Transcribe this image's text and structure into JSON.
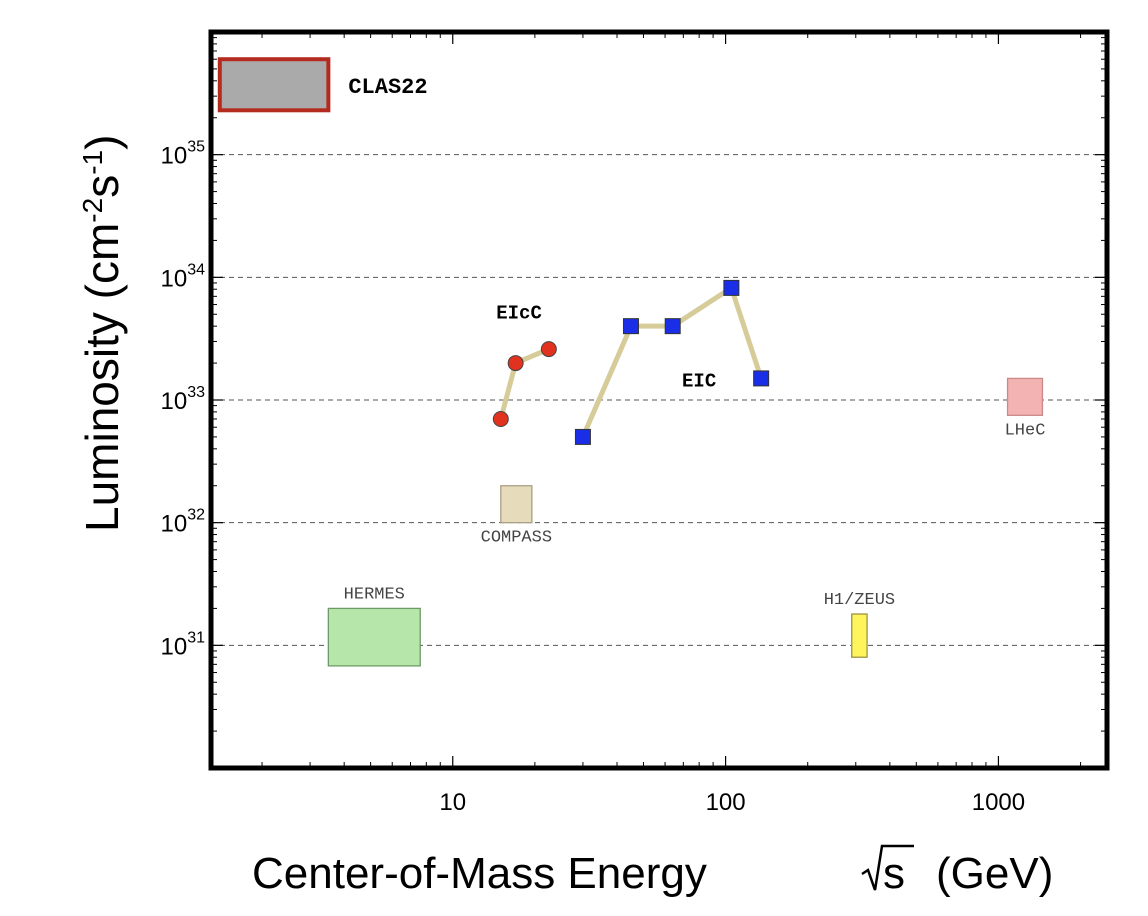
{
  "chart_data": {
    "type": "scatter",
    "xlabel": "Center-of-Mass Energy",
    "xlabel_symbol": "s",
    "xlabel_unit": "(GeV)",
    "ylabel_prefix": "Luminosity (cm",
    "ylabel_exp1": "-2",
    "ylabel_mid": "s",
    "ylabel_exp2": "-1",
    "ylabel_suffix": ")",
    "x_scale": "log",
    "y_scale": "log",
    "xlim": [
      1.3,
      2500
    ],
    "ylim": [
      1e+30,
      1e+36
    ],
    "x_ticks": [
      {
        "value": 10,
        "label": "10"
      },
      {
        "value": 100,
        "label": "100"
      },
      {
        "value": 1000,
        "label": "1000"
      }
    ],
    "y_ticks": [
      {
        "value": 1e+31,
        "base": "10",
        "exp": "31"
      },
      {
        "value": 1e+32,
        "base": "10",
        "exp": "32"
      },
      {
        "value": 1e+33,
        "base": "10",
        "exp": "33"
      },
      {
        "value": 1e+34,
        "base": "10",
        "exp": "34"
      },
      {
        "value": 1e+35,
        "base": "10",
        "exp": "35"
      }
    ],
    "grid": "horizontal dashed",
    "series": [
      {
        "name": "EIcC",
        "marker": "circle",
        "color": "#e0321e",
        "line_color": "#d6cc99",
        "x": [
          15,
          17,
          22.5
        ],
        "y": [
          7e+32,
          2e+33,
          2.6e+33
        ]
      },
      {
        "name": "EIC",
        "marker": "square",
        "color": "#1a2ee8",
        "line_color": "#d6cc99",
        "x": [
          30,
          45,
          64,
          105,
          135
        ],
        "y": [
          5e+32,
          4e+33,
          4e+33,
          8.2e+33,
          1.5e+33
        ]
      }
    ],
    "regions": [
      {
        "name": "CLAS22",
        "x": [
          1.4,
          3.5
        ],
        "y": [
          2.3e+35,
          6e+35
        ],
        "fill": "#aaaaaa",
        "stroke": "#b52a1e"
      },
      {
        "name": "LHeC",
        "x": [
          1080,
          1450
        ],
        "y": [
          7.5e+32,
          1.5e+33
        ],
        "fill": "#f4b3b3",
        "stroke": "#c98a8a"
      },
      {
        "name": "COMPASS",
        "x": [
          15,
          19.5
        ],
        "y": [
          1e+32,
          2e+32
        ],
        "fill": "#e6dcbc",
        "stroke": "#a89f85"
      },
      {
        "name": "HERMES",
        "x": [
          3.5,
          7.6
        ],
        "y": [
          6.8e+30,
          2e+31
        ],
        "fill": "#b6e6aa",
        "stroke": "#6d9a66"
      },
      {
        "name": "H1/ZEUS",
        "x": [
          290,
          330
        ],
        "y": [
          8e+30,
          1.8e+31
        ],
        "fill": "#fff45c",
        "stroke": "#9a9440"
      }
    ]
  }
}
